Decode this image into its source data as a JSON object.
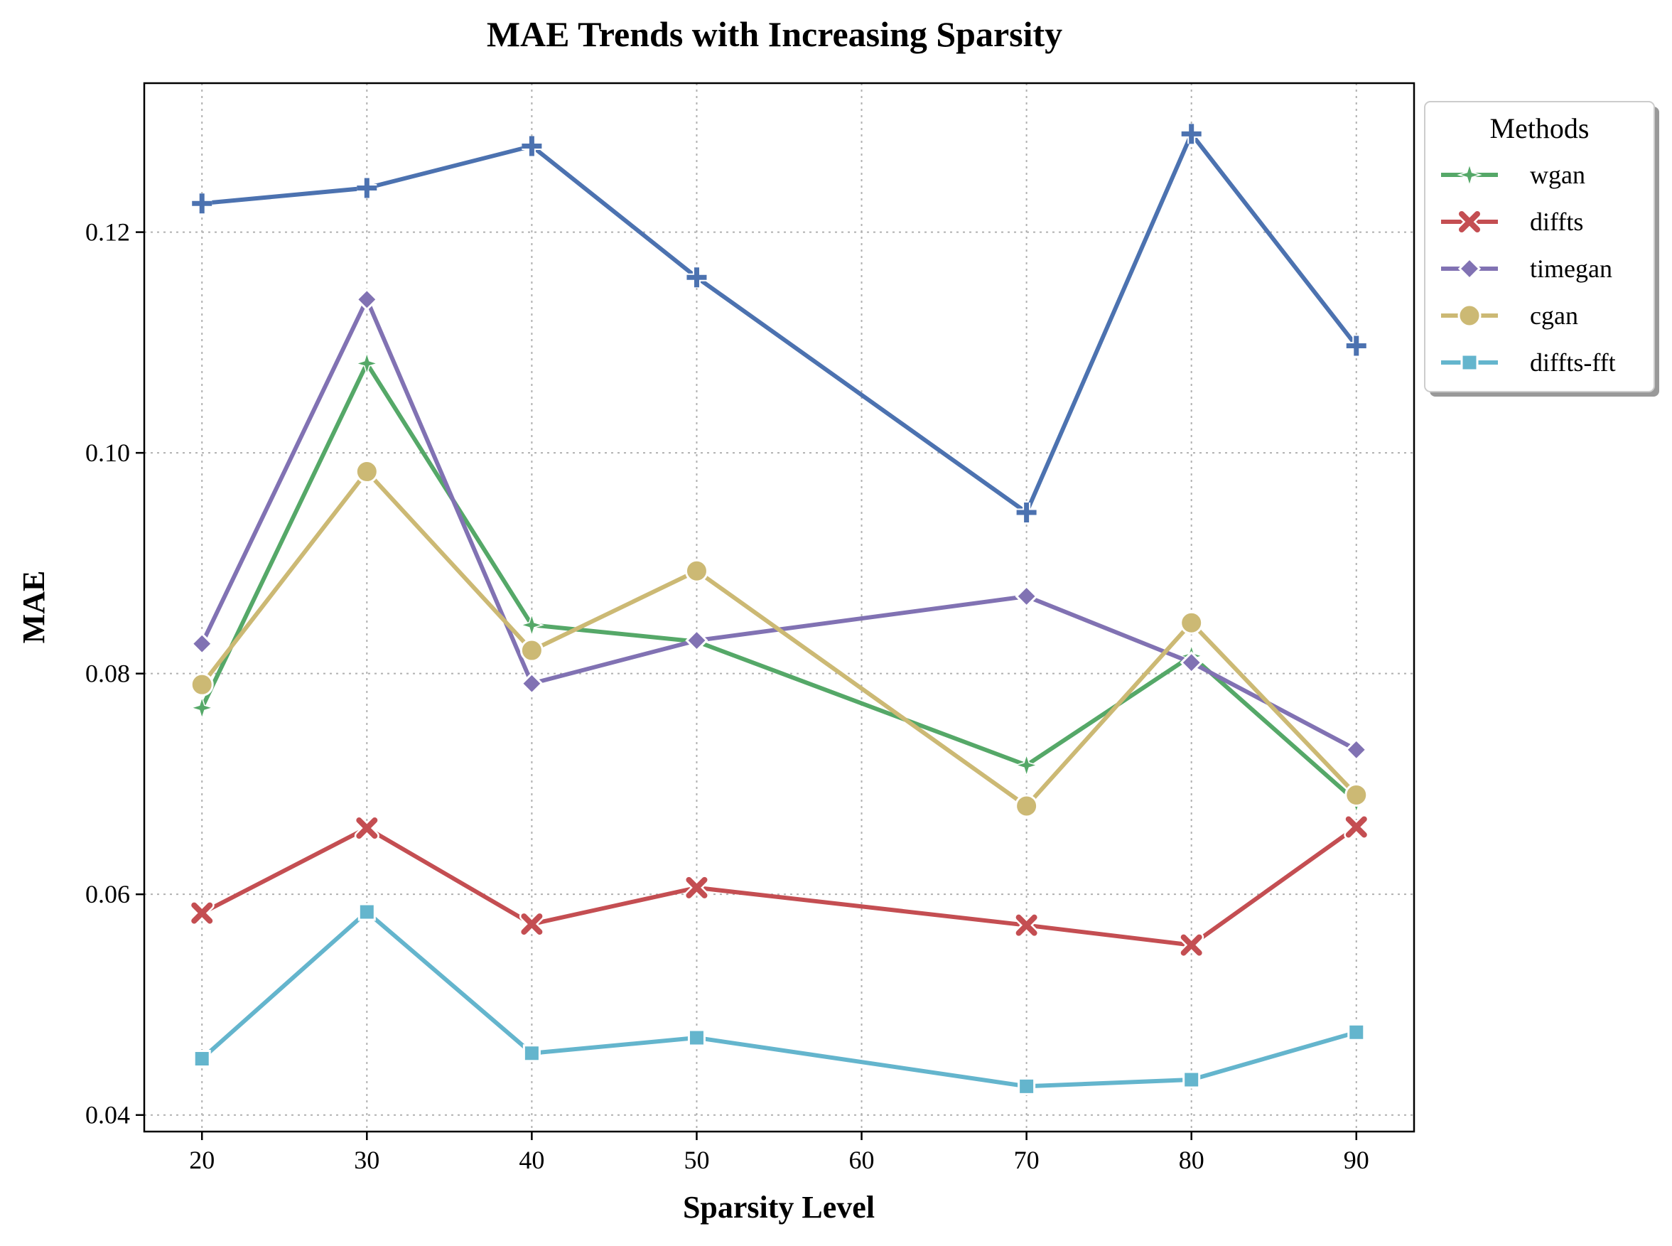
{
  "chart_data": {
    "type": "line",
    "title": "MAE Trends with Increasing Sparsity",
    "xlabel": "Sparsity Level",
    "ylabel": "MAE",
    "x": [
      20,
      30,
      40,
      50,
      70,
      80,
      90
    ],
    "xticks": [
      20,
      30,
      40,
      50,
      60,
      70,
      80,
      90
    ],
    "yticks": [
      0.04,
      0.06,
      0.08,
      0.1,
      0.12
    ],
    "xlim": [
      16.5,
      93.5
    ],
    "ylim": [
      0.0385,
      0.1335
    ],
    "grid": true,
    "legend": {
      "title": "Methods",
      "placement": "outside-top-right"
    },
    "series": [
      {
        "name": "wgan",
        "color": "#55a868",
        "marker": "star",
        "values": [
          0.0769,
          0.1081,
          0.0844,
          0.0829,
          0.0717,
          0.0816,
          0.0684
        ]
      },
      {
        "name": "diffts",
        "color": "#c44e52",
        "marker": "x",
        "values": [
          0.0583,
          0.066,
          0.0573,
          0.0606,
          0.0572,
          0.0554,
          0.0661
        ]
      },
      {
        "name": "timegan",
        "color": "#8172b3",
        "marker": "diamond",
        "values": [
          0.0827,
          0.1139,
          0.0791,
          0.083,
          0.087,
          0.081,
          0.0731
        ]
      },
      {
        "name": "cgan",
        "color": "#ccb974",
        "marker": "circle",
        "values": [
          0.079,
          0.0983,
          0.0821,
          0.0893,
          0.068,
          0.0846,
          0.069
        ]
      },
      {
        "name": "diffts-fft",
        "color": "#64b5cd",
        "marker": "square",
        "values": [
          0.0451,
          0.0584,
          0.0456,
          0.047,
          0.0426,
          0.0432,
          0.0475
        ]
      },
      {
        "name": "",
        "color": "#4c72b0",
        "marker": "plus",
        "values": [
          0.1226,
          0.124,
          0.1278,
          0.1159,
          0.0946,
          0.1289,
          0.1097
        ]
      }
    ]
  }
}
